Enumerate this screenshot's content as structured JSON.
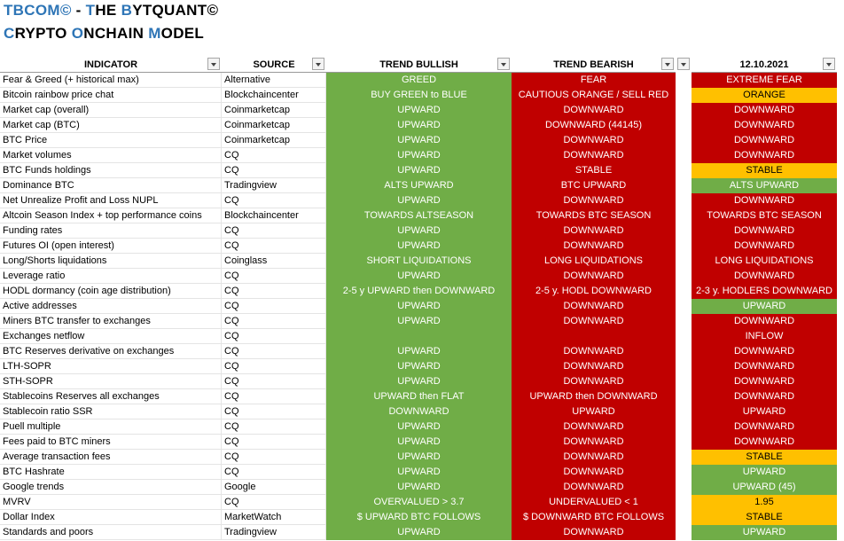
{
  "title_lines": [
    [
      "TBCOM©",
      " - ",
      "T",
      "HE ",
      "B",
      "YTQUANT©"
    ],
    [
      "C",
      "RYPTO ",
      "O",
      "NCHAIN ",
      "M",
      "ODEL"
    ]
  ],
  "table": {
    "header": [
      "INDICATOR",
      "SOURCE",
      "TREND BULLISH",
      "TREND BEARISH",
      "12.10.2021"
    ],
    "bullish_color": "#70ad47",
    "bearish_color": "#c00000",
    "rows": [
      {
        "indicator": "Fear & Greed (+ historical max)",
        "source": "Alternative",
        "bullish": "GREED",
        "bearish": "FEAR",
        "current": "EXTREME FEAR",
        "color": "#c00000"
      },
      {
        "indicator": "Bitcoin rainbow price chat",
        "source": "Blockchaincenter",
        "bullish": "BUY GREEN to BLUE",
        "bearish": "CAUTIOUS ORANGE / SELL RED",
        "current": "ORANGE",
        "color": "#ffc000"
      },
      {
        "indicator": "Market cap (overall)",
        "source": "Coinmarketcap",
        "bullish": "UPWARD",
        "bearish": "DOWNWARD",
        "current": "DOWNWARD",
        "color": "#c00000"
      },
      {
        "indicator": "Market cap (BTC)",
        "source": "Coinmarketcap",
        "bullish": "UPWARD",
        "bearish": "DOWNWARD (44145)",
        "current": "DOWNWARD",
        "color": "#c00000"
      },
      {
        "indicator": "BTC Price",
        "source": "Coinmarketcap",
        "bullish": "UPWARD",
        "bearish": "DOWNWARD",
        "current": "DOWNWARD",
        "color": "#c00000"
      },
      {
        "indicator": "Market volumes",
        "source": "CQ",
        "bullish": "UPWARD",
        "bearish": "DOWNWARD",
        "current": "DOWNWARD",
        "color": "#c00000"
      },
      {
        "indicator": "BTC Funds holdings",
        "source": "CQ",
        "bullish": "UPWARD",
        "bearish": "STABLE",
        "current": "STABLE",
        "color": "#ffc000"
      },
      {
        "indicator": "Dominance BTC",
        "source": "Tradingview",
        "bullish": "ALTS UPWARD",
        "bearish": "BTC UPWARD",
        "current": "ALTS UPWARD",
        "color": "#70ad47"
      },
      {
        "indicator": "Net Unrealize Profit and Loss NUPL",
        "source": "CQ",
        "bullish": "UPWARD",
        "bearish": "DOWNWARD",
        "current": "DOWNWARD",
        "color": "#c00000"
      },
      {
        "indicator": "Altcoin Season Index + top performance coins",
        "source": "Blockchaincenter",
        "bullish": "TOWARDS ALTSEASON",
        "bearish": "TOWARDS BTC SEASON",
        "current": "TOWARDS BTC SEASON",
        "color": "#c00000"
      },
      {
        "indicator": "Funding rates",
        "source": "CQ",
        "bullish": "UPWARD",
        "bearish": "DOWNWARD",
        "current": "DOWNWARD",
        "color": "#c00000"
      },
      {
        "indicator": "Futures OI (open interest)",
        "source": "CQ",
        "bullish": "UPWARD",
        "bearish": "DOWNWARD",
        "current": "DOWNWARD",
        "color": "#c00000"
      },
      {
        "indicator": "Long/Shorts liquidations",
        "source": "Coinglass",
        "bullish": "SHORT LIQUIDATIONS",
        "bearish": "LONG LIQUIDATIONS",
        "current": "LONG LIQUIDATIONS",
        "color": "#c00000"
      },
      {
        "indicator": "Leverage ratio",
        "source": "CQ",
        "bullish": "UPWARD",
        "bearish": "DOWNWARD",
        "current": "DOWNWARD",
        "color": "#c00000"
      },
      {
        "indicator": "HODL dormancy (coin age distribution)",
        "source": "CQ",
        "bullish": "2-5 y UPWARD then DOWNWARD",
        "bearish": "2-5 y. HODL DOWNWARD",
        "current": "2-3 y. HODLERS DOWNWARD",
        "color": "#c00000"
      },
      {
        "indicator": "Active addresses",
        "source": "CQ",
        "bullish": "UPWARD",
        "bearish": "DOWNWARD",
        "current": "UPWARD",
        "color": "#70ad47"
      },
      {
        "indicator": "Miners BTC transfer to exchanges",
        "source": "CQ",
        "bullish": "UPWARD",
        "bearish": "DOWNWARD",
        "current": "DOWNWARD",
        "color": "#c00000"
      },
      {
        "indicator": "Exchanges netflow",
        "source": "CQ",
        "bullish": null,
        "bearish": null,
        "current": "INFLOW",
        "color": "#c00000"
      },
      {
        "indicator": "BTC Reserves derivative on exchanges",
        "source": "CQ",
        "bullish": "UPWARD",
        "bearish": "DOWNWARD",
        "current": "DOWNWARD",
        "color": "#c00000"
      },
      {
        "indicator": "LTH-SOPR",
        "source": "CQ",
        "bullish": "UPWARD",
        "bearish": "DOWNWARD",
        "current": "DOWNWARD",
        "color": "#c00000"
      },
      {
        "indicator": "STH-SOPR",
        "source": "CQ",
        "bullish": "UPWARD",
        "bearish": "DOWNWARD",
        "current": "DOWNWARD",
        "color": "#c00000"
      },
      {
        "indicator": "Stablecoins Reserves all exchanges",
        "source": "CQ",
        "bullish": "UPWARD then FLAT",
        "bearish": "UPWARD then DOWNWARD",
        "current": "DOWNWARD",
        "color": "#c00000"
      },
      {
        "indicator": "Stablecoin ratio SSR",
        "source": "CQ",
        "bullish": "DOWNWARD",
        "bearish": "UPWARD",
        "current": "UPWARD",
        "color": "#c00000"
      },
      {
        "indicator": "Puell multiple",
        "source": "CQ",
        "bullish": "UPWARD",
        "bearish": "DOWNWARD",
        "current": "DOWNWARD",
        "color": "#c00000"
      },
      {
        "indicator": "Fees paid to BTC miners",
        "source": "CQ",
        "bullish": "UPWARD",
        "bearish": "DOWNWARD",
        "current": "DOWNWARD",
        "color": "#c00000"
      },
      {
        "indicator": "Average transaction fees",
        "source": "CQ",
        "bullish": "UPWARD",
        "bearish": "DOWNWARD",
        "current": "STABLE",
        "color": "#ffc000"
      },
      {
        "indicator": "BTC Hashrate",
        "source": "CQ",
        "bullish": "UPWARD",
        "bearish": "DOWNWARD",
        "current": "UPWARD",
        "color": "#70ad47"
      },
      {
        "indicator": "Google trends",
        "source": "Google",
        "bullish": "UPWARD",
        "bearish": "DOWNWARD",
        "current": "UPWARD (45)",
        "color": "#70ad47"
      },
      {
        "indicator": "MVRV",
        "source": "CQ",
        "bullish": "OVERVALUED > 3.7",
        "bearish": "UNDERVALUED < 1",
        "current": "1.95",
        "color": "#ffc000"
      },
      {
        "indicator": "Dollar Index",
        "source": "MarketWatch",
        "bullish": "$ UPWARD BTC FOLLOWS",
        "bearish": "$ DOWNWARD BTC FOLLOWS",
        "current": "STABLE",
        "color": "#ffc000"
      },
      {
        "indicator": "Standards and poors",
        "source": "Tradingview",
        "bullish": "UPWARD",
        "bearish": "DOWNWARD",
        "current": "UPWARD",
        "color": "#70ad47"
      }
    ]
  }
}
